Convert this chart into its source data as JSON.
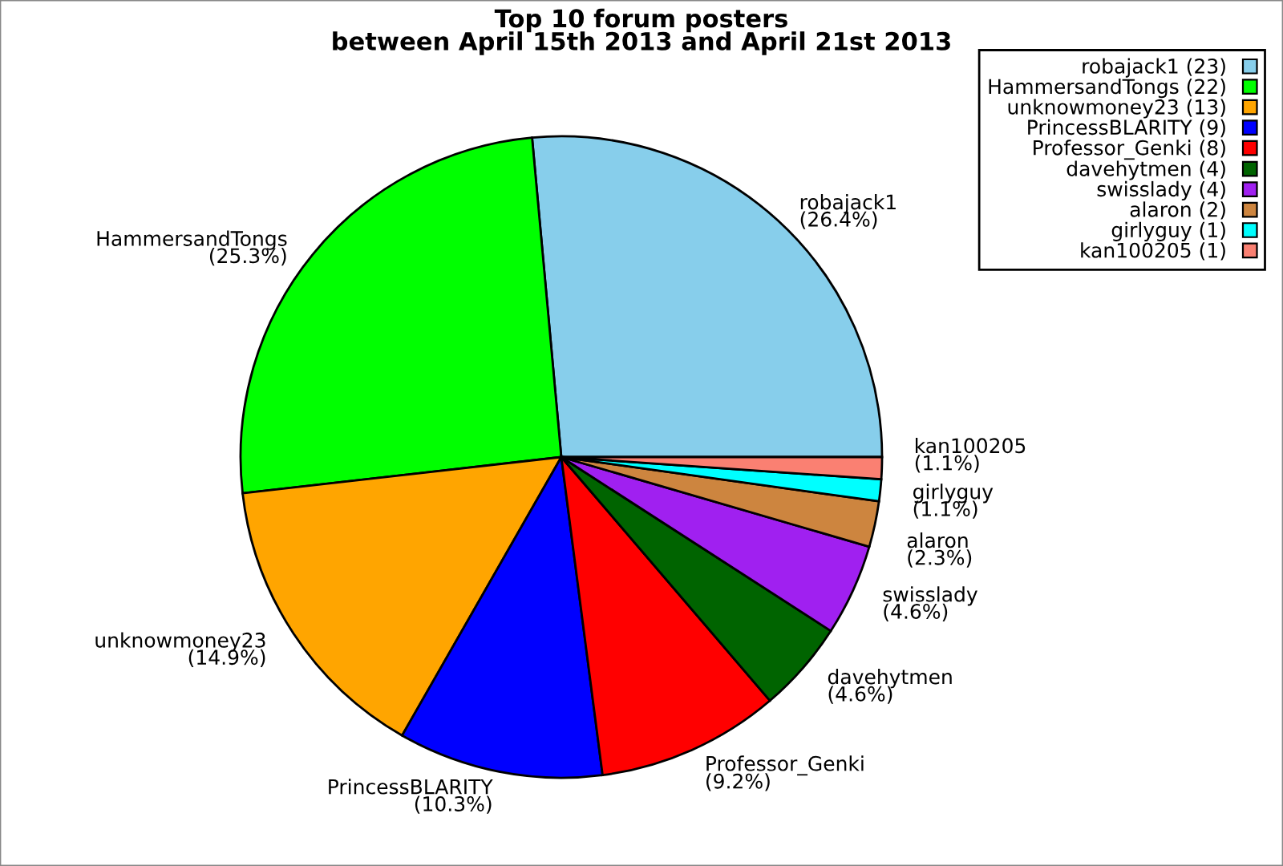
{
  "chart_data": {
    "type": "pie",
    "title": "Top 10 forum posters\nbetween April 15th 2013 and April 21st 2013",
    "categories": [
      "robajack1 (23)",
      "HammersandTongs (22)",
      "unknowmoney23 (13)",
      "PrincessBLARITY (9)",
      "Professor_Genki (8)",
      "davehytmen (4)",
      "swisslady (4)",
      "alaron (2)",
      "girlyguy (1)",
      "kan100205 (1)"
    ],
    "values": [
      26.4,
      25.3,
      14.9,
      10.3,
      9.2,
      4.6,
      4.6,
      2.3,
      1.1,
      1.1
    ],
    "value_labels": [
      "robajack1\n(26.4%)",
      "HammersandTongs\n(25.3%)",
      "unknowmoney23\n(14.9%)",
      "PrincessBLARITY\n(10.3%)",
      "Professor_Genki\n(9.2%)",
      "davehytmen\n(4.6%)",
      "swisslady\n(4.6%)",
      "alaron\n(2.3%)",
      "girlyguy\n(1.1%)",
      "kan100205\n(1.1%)"
    ],
    "colors": [
      "#87ceeb",
      "#00ff00",
      "#ffa500",
      "#0000ff",
      "#ff0000",
      "#006400",
      "#a020f0",
      "#cd853f",
      "#00ffff",
      "#fa8072"
    ],
    "legend": "top right"
  }
}
